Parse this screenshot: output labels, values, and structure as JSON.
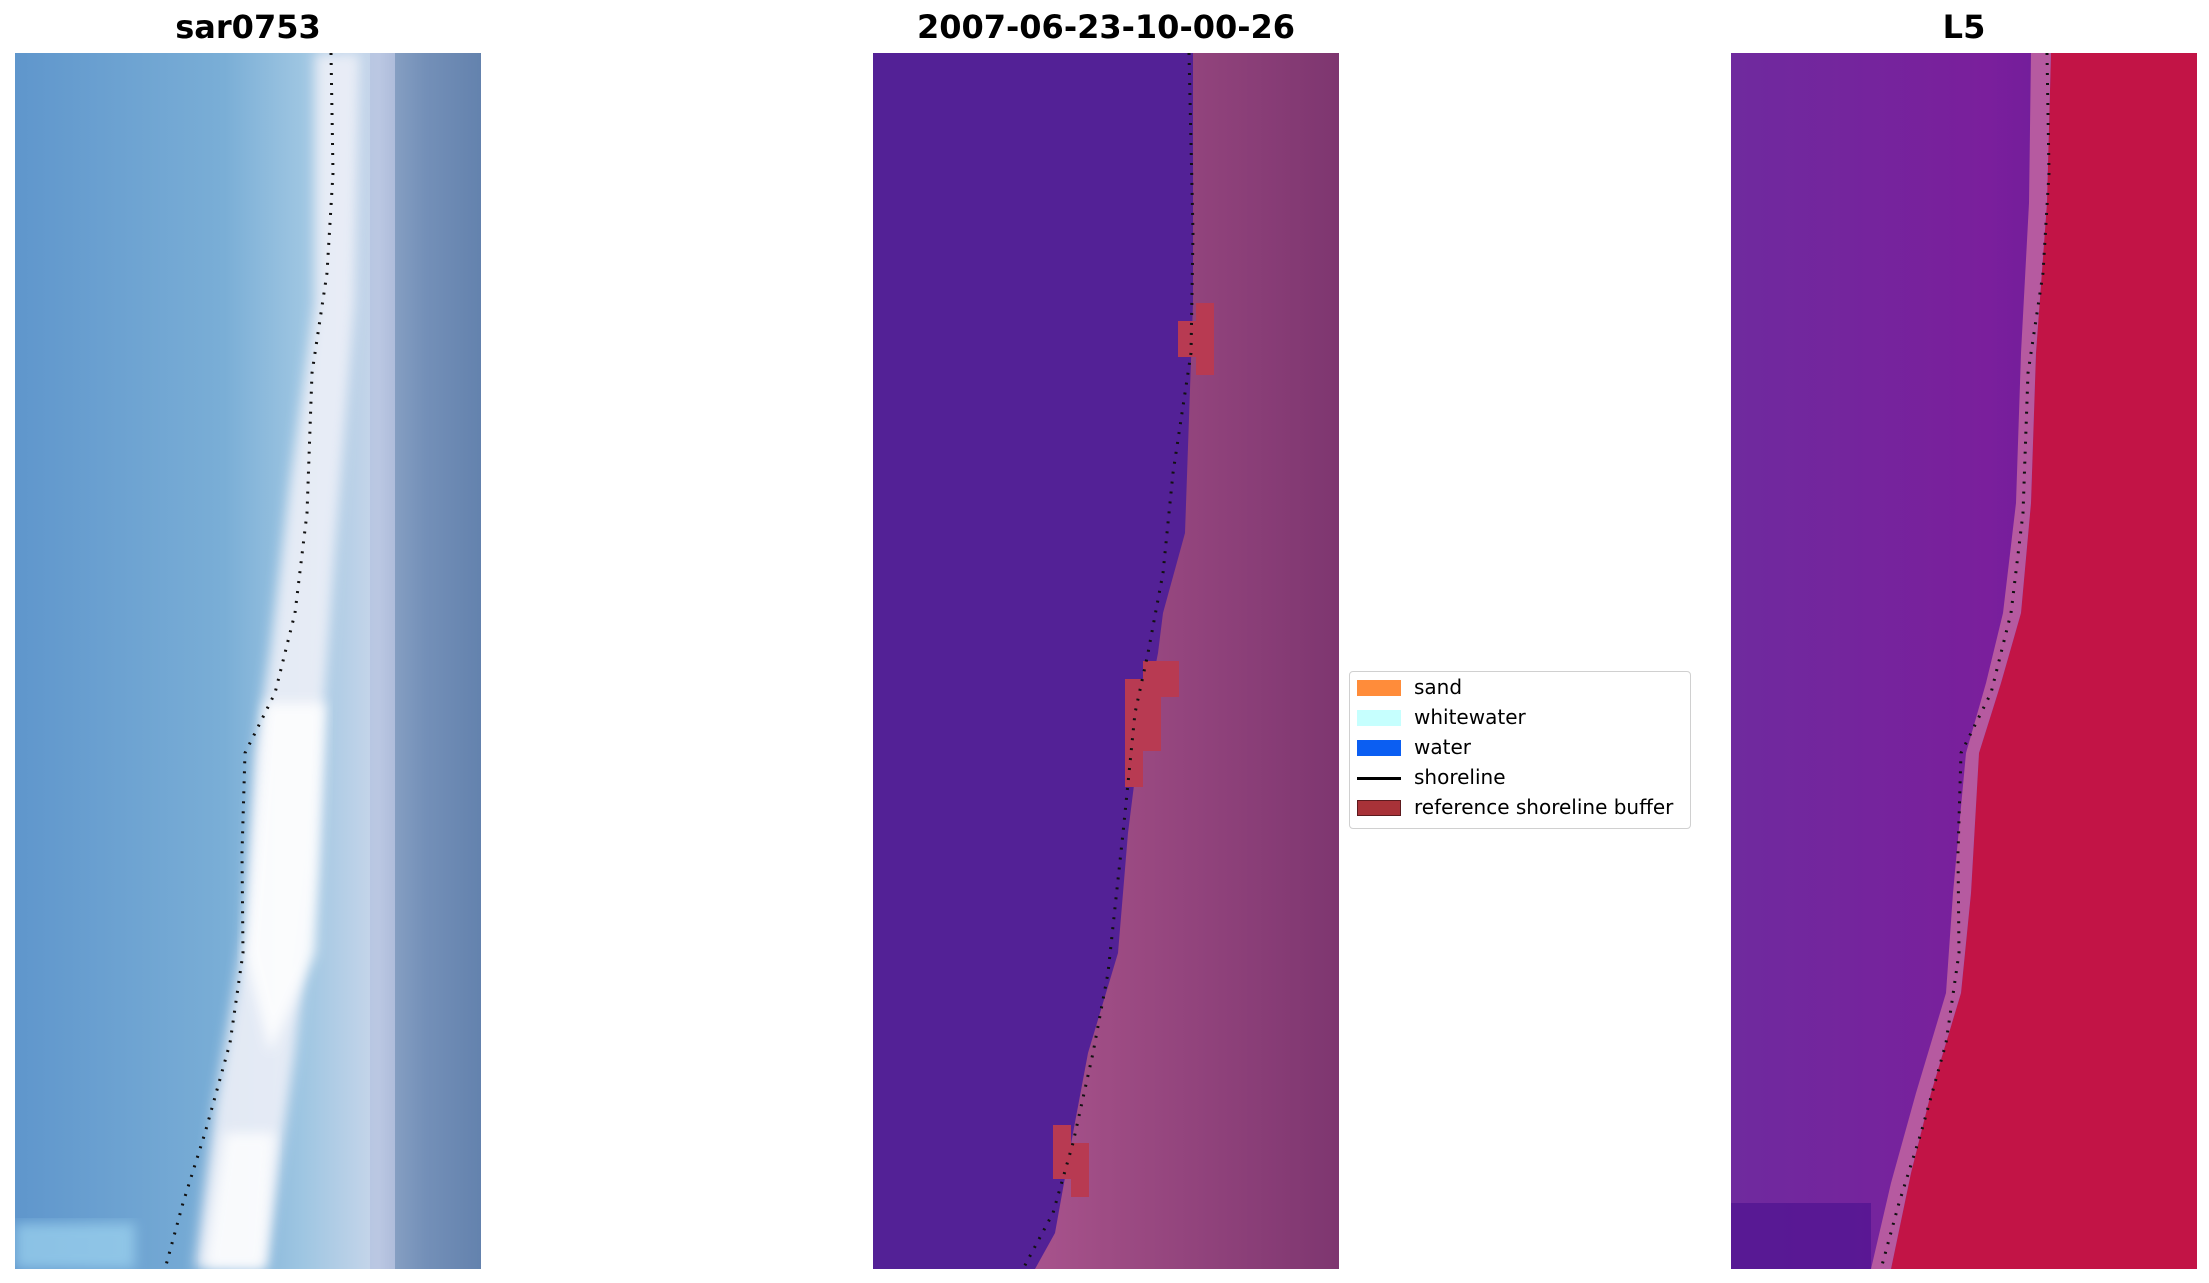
{
  "panels": [
    {
      "title": "sar0753",
      "image": "true-color RGB satellite image with dotted shoreline"
    },
    {
      "title": "2007-06-23-10-00-26",
      "image": "classified image with reference shoreline buffer and dotted shoreline"
    },
    {
      "title": "L5",
      "image": "index image (water index) with dotted shoreline"
    }
  ],
  "legend": {
    "items": [
      {
        "label": "sand",
        "color": "#ff8c3a",
        "kind": "patch"
      },
      {
        "label": "whitewater",
        "color": "#c6fffe",
        "kind": "patch"
      },
      {
        "label": "water",
        "color": "#0b5ef2",
        "kind": "patch"
      },
      {
        "label": "shoreline",
        "color": "#000000",
        "kind": "line"
      },
      {
        "label": "reference shoreline buffer",
        "color": "#a83238",
        "kind": "patch",
        "edge": "#5c1a1e"
      }
    ]
  }
}
